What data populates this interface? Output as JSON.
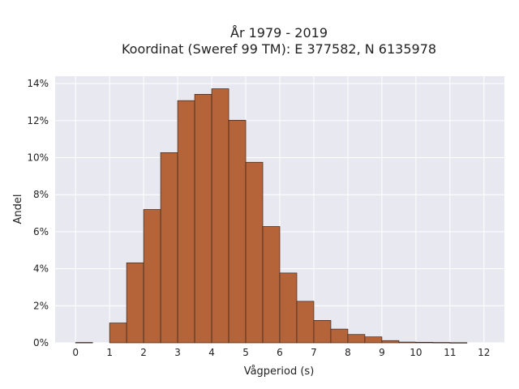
{
  "chart_data": {
    "type": "bar",
    "title": "År 1979 - 2019",
    "subtitle": "Koordinat (Sweref 99 TM): E 377582, N 6135978",
    "xlabel": "Vågperiod (s)",
    "ylabel": "Andel",
    "bin_width": 0.5,
    "bin_starts": [
      0,
      0.5,
      1,
      1.5,
      2,
      2.5,
      3,
      3.5,
      4,
      4.5,
      5,
      5.5,
      6,
      6.5,
      7,
      7.5,
      8,
      8.5,
      9,
      9.5,
      10,
      10.5,
      11,
      11.5
    ],
    "values": [
      0.0002,
      0,
      0.0107,
      0.0432,
      0.072,
      0.1027,
      0.1308,
      0.1342,
      0.1372,
      0.1202,
      0.0975,
      0.0628,
      0.0377,
      0.0224,
      0.0121,
      0.0074,
      0.0045,
      0.0032,
      0.0012,
      0.0004,
      0.0003,
      0.0002,
      0.0001,
      0
    ],
    "xlim": [
      -0.6,
      12.6
    ],
    "ylim": [
      0,
      0.144
    ],
    "xticks": [
      0,
      1,
      2,
      3,
      4,
      5,
      6,
      7,
      8,
      9,
      10,
      11,
      12
    ],
    "yticks": [
      0,
      0.02,
      0.04,
      0.06,
      0.08,
      0.1,
      0.12,
      0.14
    ],
    "ytick_labels": [
      "0%",
      "2%",
      "4%",
      "6%",
      "8%",
      "10%",
      "12%",
      "14%"
    ],
    "grid": true,
    "colors": {
      "bar": "#b5643a",
      "background": "#e8e8f0",
      "grid": "#ffffff"
    }
  }
}
